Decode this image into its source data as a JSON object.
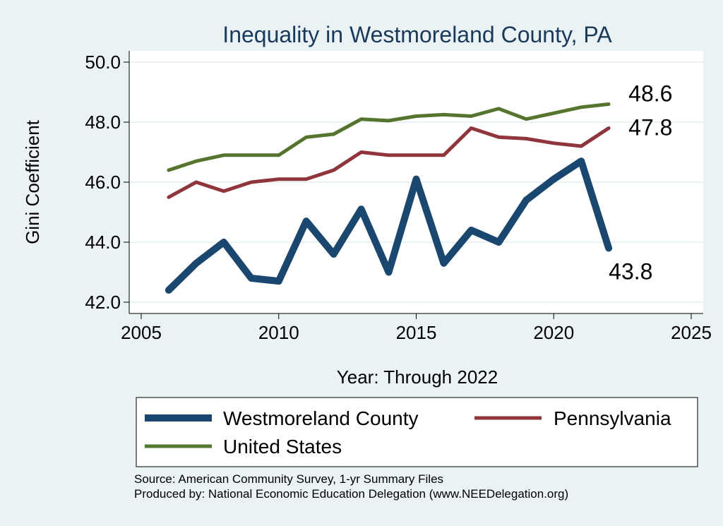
{
  "chart_data": {
    "type": "line",
    "title": "Inequality in Westmoreland County, PA",
    "xlabel": "Year: Through 2022",
    "ylabel": "Gini Coefficient",
    "xlim": [
      2005,
      2025
    ],
    "ylim": [
      42.0,
      50.0
    ],
    "xticks": [
      "2005",
      "2010",
      "2015",
      "2020",
      "2025"
    ],
    "yticks": [
      "42.0",
      "44.0",
      "46.0",
      "48.0",
      "50.0"
    ],
    "grid": "horizontal",
    "legend_position": "bottom",
    "series": [
      {
        "name": "Westmoreland County",
        "color": "#1a476f",
        "x": [
          2006,
          2007,
          2008,
          2009,
          2010,
          2011,
          2012,
          2013,
          2014,
          2015,
          2016,
          2017,
          2018,
          2019,
          2020,
          2021,
          2022
        ],
        "y": [
          42.4,
          43.3,
          44.0,
          42.8,
          42.7,
          44.7,
          43.6,
          45.1,
          43.0,
          46.1,
          43.3,
          44.4,
          44.0,
          45.4,
          46.1,
          46.7,
          43.8
        ],
        "end_label": "43.8"
      },
      {
        "name": "Pennsylvania",
        "color": "#90353b",
        "x": [
          2006,
          2007,
          2008,
          2009,
          2010,
          2011,
          2012,
          2013,
          2014,
          2015,
          2016,
          2017,
          2018,
          2019,
          2020,
          2021,
          2022
        ],
        "y": [
          45.5,
          46.0,
          45.7,
          46.0,
          46.1,
          46.1,
          46.4,
          47.0,
          46.9,
          46.9,
          46.9,
          47.8,
          47.5,
          47.45,
          47.3,
          47.2,
          47.8
        ],
        "end_label": "47.8"
      },
      {
        "name": "United States",
        "color": "#55752f",
        "x": [
          2006,
          2007,
          2008,
          2009,
          2010,
          2011,
          2012,
          2013,
          2014,
          2015,
          2016,
          2017,
          2018,
          2019,
          2020,
          2021,
          2022
        ],
        "y": [
          46.4,
          46.7,
          46.9,
          46.9,
          46.9,
          47.5,
          47.6,
          48.1,
          48.05,
          48.2,
          48.25,
          48.2,
          48.45,
          48.1,
          48.3,
          48.5,
          48.6
        ],
        "end_label": "48.6"
      }
    ]
  },
  "notes": {
    "source": "Source: American Community Survey, 1-yr Summary Files",
    "produced_by": "Produced by: National Economic Education Delegation (www.NEEDelegation.org)"
  }
}
